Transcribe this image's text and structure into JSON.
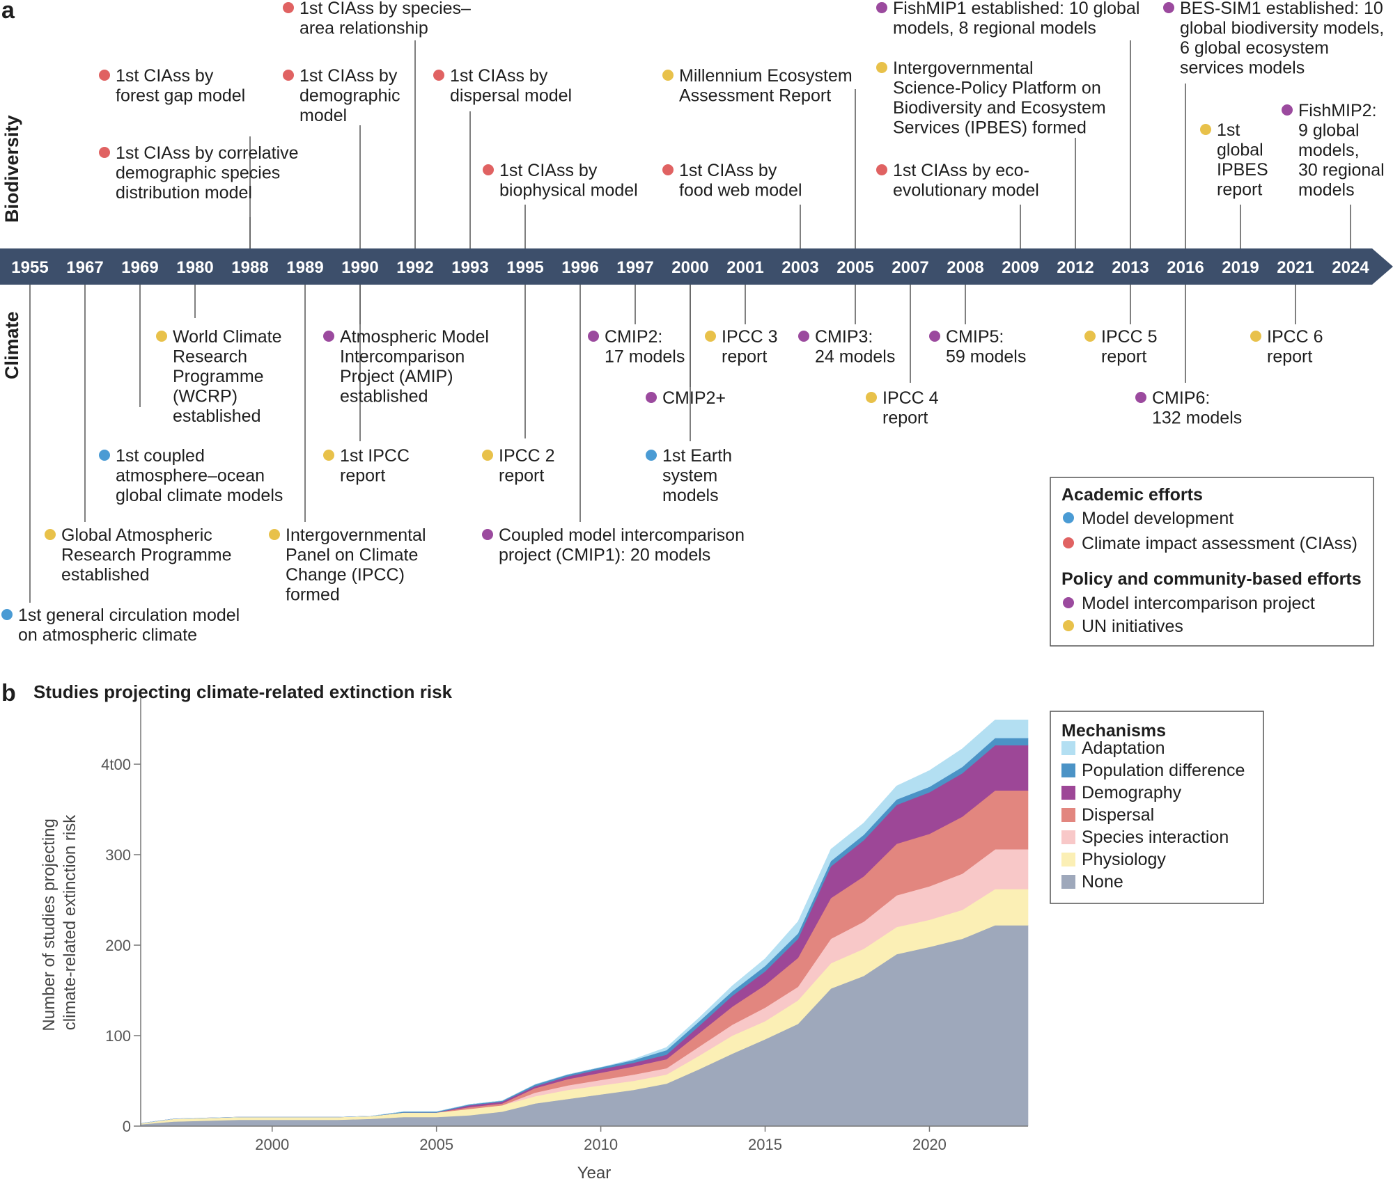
{
  "panel_a": {
    "letter": "a",
    "row_top_label": "Biodiversity",
    "row_bottom_label": "Climate",
    "years": [
      "1955",
      "1967",
      "1969",
      "1980",
      "1988",
      "1989",
      "1990",
      "1992",
      "1993",
      "1995",
      "1996",
      "1997",
      "2000",
      "2001",
      "2003",
      "2005",
      "2007",
      "2008",
      "2009",
      "2012",
      "2013",
      "2016",
      "2019",
      "2021",
      "2024"
    ],
    "biodiversity_events": [
      {
        "year": "1988",
        "category": "ciass",
        "lines": [
          "1st CIAss by",
          "forest gap model"
        ]
      },
      {
        "year": "1988",
        "category": "ciass",
        "lines": [
          "1st CIAss by correlative",
          "demographic species",
          "distribution model"
        ]
      },
      {
        "year": "1990",
        "category": "ciass",
        "lines": [
          "1st CIAss by",
          "demographic",
          "model"
        ]
      },
      {
        "year": "1992",
        "category": "ciass",
        "lines": [
          "1st CIAss by species–",
          "area relationship"
        ]
      },
      {
        "year": "1993",
        "category": "ciass",
        "lines": [
          "1st CIAss by",
          "dispersal model"
        ]
      },
      {
        "year": "1995",
        "category": "ciass",
        "lines": [
          "1st CIAss by",
          "biophysical model"
        ]
      },
      {
        "year": "2003",
        "category": "ciass",
        "lines": [
          "1st CIAss by",
          "food web model"
        ]
      },
      {
        "year": "2005",
        "category": "un",
        "lines": [
          "Millennium Ecosystem",
          "Assessment Report"
        ]
      },
      {
        "year": "2009",
        "category": "ciass",
        "lines": [
          "1st CIAss by eco-",
          "evolutionary model"
        ]
      },
      {
        "year": "2012",
        "category": "un",
        "lines": [
          "Intergovernmental",
          "Science-Policy Platform on",
          "Biodiversity and Ecosystem",
          "Services (IPBES) formed"
        ]
      },
      {
        "year": "2013",
        "category": "mip",
        "lines": [
          "FishMIP1 established: 10 global",
          "models, 8 regional models"
        ]
      },
      {
        "year": "2016",
        "category": "mip",
        "lines": [
          "BES-SIM1 established: 10",
          "global biodiversity models,",
          "6 global ecosystem",
          "services models"
        ]
      },
      {
        "year": "2019",
        "category": "un",
        "lines": [
          "1st",
          "global",
          "IPBES",
          "report"
        ]
      },
      {
        "year": "2024",
        "category": "mip",
        "lines": [
          "FishMIP2:",
          "9 global",
          "models,",
          "30 regional",
          "models"
        ]
      }
    ],
    "climate_events": [
      {
        "year": "1955",
        "category": "model",
        "lines": [
          "1st general circulation model",
          "on atmospheric climate"
        ]
      },
      {
        "year": "1967",
        "category": "un",
        "lines": [
          "Global Atmospheric",
          "Research Programme",
          "established"
        ]
      },
      {
        "year": "1969",
        "category": "model",
        "lines": [
          "1st coupled",
          "atmosphere–ocean",
          "global climate models"
        ]
      },
      {
        "year": "1980",
        "category": "un",
        "lines": [
          "World Climate",
          "Research",
          "Programme",
          "(WCRP)",
          "established"
        ]
      },
      {
        "year": "1989",
        "category": "un",
        "lines": [
          "Intergovernmental",
          "Panel on Climate",
          "Change (IPCC)",
          "formed"
        ]
      },
      {
        "year": "1990",
        "category": "mip",
        "lines": [
          "Atmospheric Model",
          "Intercomparison",
          "Project (AMIP)",
          "established"
        ]
      },
      {
        "year": "1990",
        "category": "un",
        "lines": [
          "1st IPCC",
          "report"
        ]
      },
      {
        "year": "1995",
        "category": "un",
        "lines": [
          "IPCC 2",
          "report"
        ]
      },
      {
        "year": "1996",
        "category": "mip",
        "lines": [
          "Coupled model intercomparison",
          "project (CMIP1): 20 models"
        ]
      },
      {
        "year": "1997",
        "category": "mip",
        "lines": [
          "CMIP2:",
          "17 models"
        ]
      },
      {
        "year": "2000",
        "category": "mip",
        "lines": [
          "CMIP2+"
        ]
      },
      {
        "year": "2000",
        "category": "model",
        "lines": [
          "1st Earth",
          "system",
          "models"
        ]
      },
      {
        "year": "2001",
        "category": "un",
        "lines": [
          "IPCC 3",
          "report"
        ]
      },
      {
        "year": "2005",
        "category": "mip",
        "lines": [
          "CMIP3:",
          "24 models"
        ]
      },
      {
        "year": "2007",
        "category": "un",
        "lines": [
          "IPCC 4",
          "report"
        ]
      },
      {
        "year": "2008",
        "category": "mip",
        "lines": [
          "CMIP5:",
          "59 models"
        ]
      },
      {
        "year": "2013",
        "category": "un",
        "lines": [
          "IPCC 5",
          "report"
        ]
      },
      {
        "year": "2016",
        "category": "mip",
        "lines": [
          "CMIP6:",
          "132 models"
        ]
      },
      {
        "year": "2021",
        "category": "un",
        "lines": [
          "IPCC 6",
          "report"
        ]
      }
    ],
    "legend": {
      "academic_heading": "Academic efforts",
      "policy_heading": "Policy and community-based efforts",
      "items": [
        {
          "key": "model",
          "label": "Model development"
        },
        {
          "key": "ciass",
          "label": "Climate impact assessment (CIAss)"
        },
        {
          "key": "mip",
          "label": "Model intercomparison project"
        },
        {
          "key": "un",
          "label": "UN initiatives"
        }
      ]
    },
    "colors": {
      "model": "#4a9bd4",
      "ciass": "#e06262",
      "mip": "#9b4a9e",
      "un": "#e8c14a",
      "band": "#3d4f6b"
    }
  },
  "panel_b": {
    "letter": "b",
    "legend_heading": "Mechanisms"
  },
  "chart_data": {
    "type": "area",
    "stacked": true,
    "title": "Studies projecting climate-related extinction risk",
    "xlabel": "Year",
    "ylabel": "Number of studies projecting climate-related extinction risk",
    "xlim": [
      1996,
      2023
    ],
    "ylim": [
      0,
      450
    ],
    "xticks": [
      2000,
      2005,
      2010,
      2015,
      2020
    ],
    "yticks": [
      0,
      100,
      200,
      300,
      400
    ],
    "ytick_labels": [
      "0",
      "100",
      "200",
      "300",
      "4t00"
    ],
    "x": [
      1996,
      1997,
      1998,
      1999,
      2000,
      2001,
      2002,
      2003,
      2004,
      2005,
      2006,
      2007,
      2008,
      2009,
      2010,
      2011,
      2012,
      2013,
      2014,
      2015,
      2016,
      2017,
      2018,
      2019,
      2020,
      2021,
      2022,
      2023
    ],
    "series": [
      {
        "name": "None",
        "color": "#9ea8bb",
        "values": [
          2,
          5,
          6,
          7,
          7,
          7,
          7,
          8,
          10,
          10,
          12,
          16,
          25,
          30,
          35,
          40,
          47,
          63,
          80,
          96,
          113,
          152,
          166,
          190,
          198,
          207,
          222,
          222
        ]
      },
      {
        "name": "Physiology",
        "color": "#fbefb5",
        "values": [
          1,
          3,
          3,
          3,
          3,
          3,
          3,
          3,
          5,
          5,
          7,
          7,
          8,
          10,
          10,
          10,
          10,
          15,
          20,
          20,
          26,
          28,
          30,
          30,
          30,
          32,
          40,
          40
        ]
      },
      {
        "name": "Species interaction",
        "color": "#f8c8c8",
        "values": [
          0,
          0,
          0,
          0,
          0,
          0,
          0,
          0,
          0,
          0,
          0,
          0,
          4,
          5,
          6,
          7,
          7,
          10,
          12,
          15,
          15,
          27,
          30,
          35,
          37,
          40,
          44,
          44
        ]
      },
      {
        "name": "Dispersal",
        "color": "#e2867f",
        "values": [
          0,
          0,
          0,
          0,
          0,
          0,
          0,
          0,
          0,
          0,
          2,
          2,
          5,
          7,
          8,
          9,
          10,
          15,
          20,
          25,
          32,
          45,
          50,
          57,
          58,
          63,
          65,
          65
        ]
      },
      {
        "name": "Demography",
        "color": "#9d4797",
        "values": [
          0,
          0,
          0,
          0,
          0,
          0,
          0,
          0,
          0,
          0,
          2,
          2,
          2,
          3,
          4,
          4,
          5,
          8,
          12,
          15,
          21,
          35,
          40,
          43,
          46,
          48,
          50,
          50
        ]
      },
      {
        "name": "Population difference",
        "color": "#4b93c6",
        "values": [
          0,
          0,
          0,
          0,
          0,
          0,
          0,
          0,
          1,
          1,
          1,
          1,
          2,
          2,
          2,
          3,
          5,
          5,
          5,
          6,
          6,
          6,
          6,
          6,
          6,
          7,
          8,
          8
        ]
      },
      {
        "name": "Adaptation",
        "color": "#b3dff2",
        "values": [
          0,
          0,
          0,
          0,
          0,
          0,
          0,
          0,
          0,
          0,
          0,
          0,
          0,
          0,
          0,
          1,
          3,
          4,
          6,
          8,
          13,
          13,
          13,
          15,
          18,
          20,
          20,
          20
        ]
      }
    ]
  }
}
